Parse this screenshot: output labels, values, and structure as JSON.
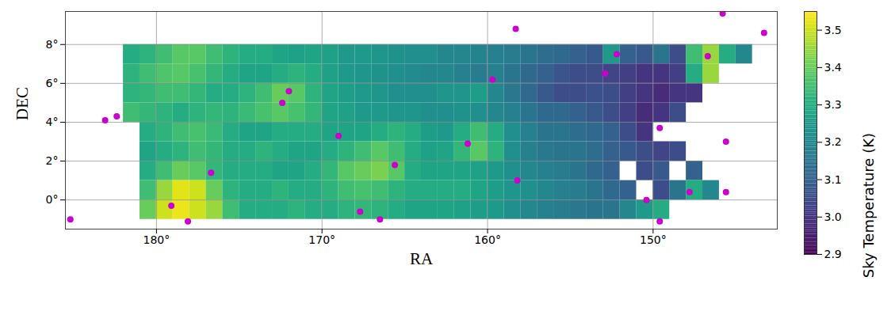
{
  "chart_data": {
    "type": "heatmap",
    "xlabel": "RA",
    "ylabel": "DEC",
    "x": [
      182.5,
      181.5,
      180.5,
      179.5,
      178.5,
      177.5,
      176.5,
      175.5,
      174.5,
      173.5,
      172.5,
      171.5,
      170.5,
      169.5,
      168.5,
      167.5,
      166.5,
      165.5,
      164.5,
      163.5,
      162.5,
      161.5,
      160.5,
      159.5,
      158.5,
      157.5,
      156.5,
      155.5,
      154.5,
      153.5,
      152.5,
      151.5,
      150.5,
      149.5,
      148.5,
      147.5,
      146.5,
      145.5,
      144.5
    ],
    "y": [
      7.5,
      6.5,
      5.5,
      4.5,
      3.5,
      2.5,
      1.5,
      0.5,
      -0.5
    ],
    "cells": [
      [
        null,
        3.3,
        3.32,
        3.35,
        3.38,
        3.38,
        3.35,
        3.32,
        3.3,
        3.3,
        3.28,
        3.27,
        3.28,
        3.27,
        3.25,
        3.25,
        3.24,
        3.23,
        3.22,
        3.22,
        3.2,
        3.2,
        3.19,
        3.18,
        3.17,
        3.15,
        3.13,
        3.12,
        3.1,
        3.08,
        3.25,
        3.1,
        3.08,
        3.15,
        3.05,
        3.35,
        3.45,
        3.3,
        3.2
      ],
      [
        null,
        3.32,
        3.35,
        3.37,
        3.38,
        3.36,
        3.33,
        3.3,
        3.28,
        3.28,
        3.3,
        3.32,
        3.3,
        3.27,
        3.25,
        3.24,
        3.23,
        3.22,
        3.21,
        3.2,
        3.2,
        3.18,
        3.17,
        3.18,
        3.15,
        3.12,
        3.1,
        3.07,
        3.05,
        3.05,
        3.03,
        3.02,
        3.0,
        3.0,
        3.02,
        3.3,
        3.45,
        null,
        null
      ],
      [
        null,
        3.32,
        3.33,
        3.35,
        3.35,
        3.33,
        3.3,
        3.3,
        3.32,
        3.35,
        3.4,
        3.38,
        3.32,
        3.28,
        3.26,
        3.25,
        3.24,
        3.22,
        3.22,
        3.22,
        3.24,
        3.24,
        3.26,
        3.2,
        3.16,
        3.12,
        3.08,
        3.05,
        3.05,
        3.06,
        3.05,
        3.02,
        3.0,
        2.98,
        3.0,
        3.0,
        null,
        null,
        null
      ],
      [
        null,
        3.35,
        3.33,
        3.32,
        3.3,
        3.32,
        3.33,
        3.32,
        3.34,
        3.36,
        3.38,
        3.36,
        3.33,
        3.28,
        3.27,
        3.25,
        3.25,
        3.24,
        3.24,
        3.22,
        3.22,
        3.23,
        3.22,
        3.2,
        3.18,
        3.15,
        3.12,
        3.12,
        3.1,
        3.08,
        3.05,
        3.02,
        2.98,
        3.0,
        3.05,
        null,
        null,
        null,
        null
      ],
      [
        null,
        null,
        3.3,
        3.32,
        3.35,
        3.36,
        3.34,
        3.3,
        3.28,
        3.28,
        3.3,
        3.3,
        3.3,
        3.28,
        3.28,
        3.28,
        3.3,
        3.32,
        3.3,
        3.26,
        3.25,
        3.3,
        3.35,
        3.3,
        3.22,
        3.18,
        3.15,
        3.15,
        3.13,
        3.12,
        3.1,
        3.05,
        3.0,
        null,
        null,
        null,
        null,
        null,
        null
      ],
      [
        null,
        null,
        3.28,
        3.3,
        3.32,
        3.35,
        3.33,
        3.3,
        3.3,
        3.32,
        3.3,
        3.28,
        3.28,
        3.3,
        3.32,
        3.35,
        3.38,
        3.35,
        3.3,
        3.27,
        3.28,
        3.33,
        3.38,
        3.32,
        3.22,
        3.18,
        3.16,
        3.15,
        3.15,
        3.13,
        3.1,
        3.08,
        3.05,
        3.03,
        3.05,
        null,
        null,
        null,
        null
      ],
      [
        null,
        null,
        3.3,
        3.35,
        3.4,
        3.38,
        3.33,
        3.3,
        3.3,
        3.3,
        3.28,
        3.28,
        3.3,
        3.33,
        3.38,
        3.4,
        3.42,
        3.38,
        3.3,
        3.28,
        3.28,
        3.28,
        3.27,
        3.25,
        3.22,
        3.2,
        3.18,
        3.17,
        3.15,
        3.12,
        3.1,
        null,
        3.05,
        3.08,
        null,
        3.1,
        null,
        null,
        null
      ],
      [
        null,
        null,
        3.35,
        3.45,
        3.52,
        3.5,
        3.4,
        3.32,
        3.3,
        3.3,
        3.32,
        3.3,
        3.3,
        3.32,
        3.35,
        3.36,
        3.35,
        3.32,
        3.3,
        3.3,
        3.3,
        3.3,
        3.28,
        3.26,
        3.24,
        3.22,
        3.2,
        3.18,
        3.17,
        3.15,
        3.12,
        3.1,
        null,
        3.05,
        3.15,
        3.3,
        3.2,
        null,
        null
      ],
      [
        null,
        null,
        3.4,
        3.5,
        3.53,
        3.5,
        3.45,
        3.35,
        3.3,
        3.3,
        3.3,
        3.32,
        3.3,
        3.3,
        3.32,
        3.33,
        3.32,
        3.3,
        3.28,
        3.28,
        3.28,
        3.27,
        3.26,
        3.25,
        3.22,
        3.2,
        3.18,
        3.17,
        3.16,
        3.15,
        3.15,
        3.2,
        3.25,
        3.3,
        null,
        null,
        null,
        null,
        null
      ]
    ],
    "color": "viridis",
    "xlim": [
      185.5,
      142.5
    ],
    "ylim": [
      -1.5,
      9.7
    ],
    "xticks": [
      {
        "value": 180,
        "label": "180°"
      },
      {
        "value": 170,
        "label": "170°"
      },
      {
        "value": 160,
        "label": "160°"
      },
      {
        "value": 150,
        "label": "150°"
      }
    ],
    "yticks": [
      {
        "value": 0,
        "label": "0°"
      },
      {
        "value": 2,
        "label": "2°"
      },
      {
        "value": 4,
        "label": "4°"
      },
      {
        "value": 6,
        "label": "6°"
      },
      {
        "value": 8,
        "label": "8°"
      }
    ],
    "grid": true,
    "colorbar": {
      "label": "Sky Temperature (K)",
      "range": [
        2.9,
        3.55
      ],
      "ticks": [
        2.9,
        {
          "value": 3,
          "label": "3.0"
        },
        3.1,
        3.2,
        3.3,
        3.4,
        3.5
      ]
    },
    "sources": {
      "color": "#cc00cc",
      "marker": "circle",
      "ra": [
        185.2,
        183.1,
        182.4,
        179.1,
        178.1,
        176.7,
        172.4,
        172.0,
        169.0,
        167.7,
        166.5,
        165.6,
        161.2,
        159.7,
        158.2,
        158.3,
        152.9,
        152.2,
        149.6,
        150.4,
        149.6,
        147.8,
        146.7,
        145.8,
        145.6,
        145.6,
        143.3
      ],
      "dec": [
        -1.0,
        4.1,
        4.3,
        -0.3,
        -1.1,
        1.4,
        5.0,
        5.6,
        3.3,
        -0.6,
        -1.0,
        1.8,
        2.9,
        6.2,
        1.0,
        8.8,
        6.5,
        7.5,
        3.7,
        0.0,
        -1.1,
        0.4,
        7.4,
        9.6,
        3.0,
        0.4,
        8.6
      ]
    }
  }
}
